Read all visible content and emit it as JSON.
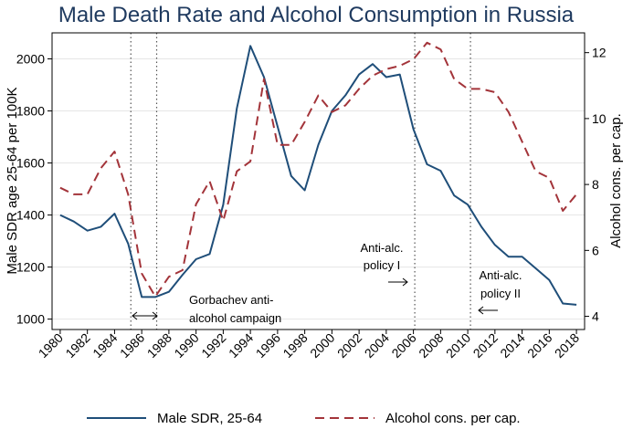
{
  "chart_data": {
    "type": "line",
    "title": "Male Death Rate and Alcohol Consumption in Russia",
    "xlabel": "",
    "ylabel": "Male SDR age 25-64 per 100K",
    "y2label": "Alcohol cons. per cap.",
    "xlim": [
      1980,
      2018
    ],
    "ylim": [
      960,
      2100
    ],
    "y2lim": [
      3.6,
      12.6
    ],
    "x_ticks": [
      1980,
      1982,
      1984,
      1986,
      1988,
      1990,
      1992,
      1994,
      1996,
      1998,
      2000,
      2002,
      2004,
      2006,
      2008,
      2010,
      2012,
      2014,
      2016,
      2018
    ],
    "y_ticks": [
      1000,
      1200,
      1400,
      1600,
      1800,
      2000
    ],
    "y2_ticks": [
      4,
      6,
      8,
      10,
      12
    ],
    "series": [
      {
        "name": "Male SDR, 25-64",
        "axis": "left",
        "color": "#1f4e79",
        "style": "solid",
        "x": [
          1980,
          1981,
          1982,
          1983,
          1984,
          1985,
          1986,
          1987,
          1988,
          1989,
          1990,
          1991,
          1992,
          1993,
          1994,
          1995,
          1996,
          1997,
          1998,
          1999,
          2000,
          2001,
          2002,
          2003,
          2004,
          2005,
          2006,
          2007,
          2008,
          2009,
          2010,
          2011,
          2012,
          2013,
          2014,
          2015,
          2016,
          2017,
          2018
        ],
        "values": [
          1400,
          1375,
          1340,
          1355,
          1405,
          1290,
          1085,
          1085,
          1105,
          1170,
          1230,
          1250,
          1440,
          1810,
          2050,
          1930,
          1740,
          1550,
          1495,
          1670,
          1800,
          1860,
          1940,
          1980,
          1930,
          1940,
          1730,
          1595,
          1570,
          1475,
          1440,
          1355,
          1285,
          1240,
          1240,
          1195,
          1150,
          1060,
          1055
        ]
      },
      {
        "name": "Alcohol cons. per cap.",
        "axis": "right",
        "color": "#a3343a",
        "style": "dashed",
        "x": [
          1980,
          1981,
          1982,
          1983,
          1984,
          1985,
          1986,
          1987,
          1988,
          1989,
          1990,
          1991,
          1992,
          1993,
          1994,
          1995,
          1996,
          1997,
          1998,
          1999,
          2000,
          2001,
          2002,
          2003,
          2004,
          2005,
          2006,
          2007,
          2008,
          2009,
          2010,
          2011,
          2012,
          2013,
          2014,
          2015,
          2016,
          2017,
          2018
        ],
        "values": [
          7.9,
          7.7,
          7.7,
          8.5,
          9.0,
          7.7,
          5.3,
          4.6,
          5.2,
          5.4,
          7.4,
          8.1,
          6.9,
          8.4,
          8.7,
          11.2,
          9.2,
          9.2,
          9.9,
          10.7,
          10.2,
          10.4,
          10.9,
          11.3,
          11.5,
          11.6,
          11.8,
          12.3,
          12.1,
          11.2,
          10.9,
          10.9,
          10.8,
          10.2,
          9.3,
          8.4,
          8.2,
          7.2,
          7.7
        ]
      }
    ],
    "vlines": [
      1985.2,
      1987.1,
      2006.1,
      2010.2
    ],
    "annotations": [
      {
        "lines": [
          "Gorbachev anti-",
          "alcohol campaign"
        ],
        "arrow": "both"
      },
      {
        "lines": [
          "Anti-alc.",
          "policy I"
        ],
        "arrow": "right"
      },
      {
        "lines": [
          "Anti-alc.",
          "policy II"
        ],
        "arrow": "left"
      }
    ],
    "legend_position": "bottom"
  }
}
